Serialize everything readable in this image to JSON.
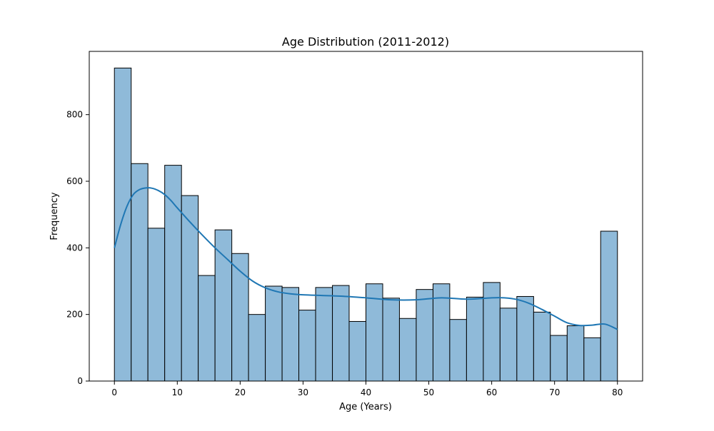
{
  "chart_data": {
    "type": "bar",
    "title": "Age Distribution (2011-2012)",
    "xlabel": "Age (Years)",
    "ylabel": "Frequency",
    "xlim": [
      -4,
      84
    ],
    "ylim": [
      0,
      990
    ],
    "xticks": [
      0,
      10,
      20,
      30,
      40,
      50,
      60,
      70,
      80
    ],
    "yticks": [
      0,
      200,
      400,
      600,
      800
    ],
    "grid": false,
    "legend": "none",
    "bar_color": "#8fbad9",
    "bar_edge_color": "#000000",
    "kde_color": "#1f77b4",
    "bins": [
      {
        "x0": 0.0,
        "x1": 2.67,
        "value": 940
      },
      {
        "x0": 2.67,
        "x1": 5.33,
        "value": 653
      },
      {
        "x0": 5.33,
        "x1": 8.0,
        "value": 459
      },
      {
        "x0": 8.0,
        "x1": 10.67,
        "value": 648
      },
      {
        "x0": 10.67,
        "x1": 13.33,
        "value": 557
      },
      {
        "x0": 13.33,
        "x1": 16.0,
        "value": 317
      },
      {
        "x0": 16.0,
        "x1": 18.67,
        "value": 454
      },
      {
        "x0": 18.67,
        "x1": 21.33,
        "value": 383
      },
      {
        "x0": 21.33,
        "x1": 24.0,
        "value": 200
      },
      {
        "x0": 24.0,
        "x1": 26.67,
        "value": 285
      },
      {
        "x0": 26.67,
        "x1": 29.33,
        "value": 281
      },
      {
        "x0": 29.33,
        "x1": 32.0,
        "value": 213
      },
      {
        "x0": 32.0,
        "x1": 34.67,
        "value": 281
      },
      {
        "x0": 34.67,
        "x1": 37.33,
        "value": 287
      },
      {
        "x0": 37.33,
        "x1": 40.0,
        "value": 179
      },
      {
        "x0": 40.0,
        "x1": 42.67,
        "value": 292
      },
      {
        "x0": 42.67,
        "x1": 45.33,
        "value": 249
      },
      {
        "x0": 45.33,
        "x1": 48.0,
        "value": 188
      },
      {
        "x0": 48.0,
        "x1": 50.67,
        "value": 275
      },
      {
        "x0": 50.67,
        "x1": 53.33,
        "value": 292
      },
      {
        "x0": 53.33,
        "x1": 56.0,
        "value": 185
      },
      {
        "x0": 56.0,
        "x1": 58.67,
        "value": 252
      },
      {
        "x0": 58.67,
        "x1": 61.33,
        "value": 296
      },
      {
        "x0": 61.33,
        "x1": 64.0,
        "value": 219
      },
      {
        "x0": 64.0,
        "x1": 66.67,
        "value": 254
      },
      {
        "x0": 66.67,
        "x1": 69.33,
        "value": 207
      },
      {
        "x0": 69.33,
        "x1": 72.0,
        "value": 137
      },
      {
        "x0": 72.0,
        "x1": 74.67,
        "value": 166
      },
      {
        "x0": 74.67,
        "x1": 77.33,
        "value": 130
      },
      {
        "x0": 77.33,
        "x1": 80.0,
        "value": 450
      }
    ],
    "kde": {
      "x": [
        0,
        1,
        2,
        3,
        4,
        5,
        6,
        7,
        8,
        9,
        10,
        12,
        14,
        16,
        18,
        20,
        22,
        24,
        26,
        28,
        30,
        33,
        36,
        40,
        44,
        48,
        52,
        56,
        60,
        62,
        64,
        66,
        68,
        70,
        72,
        74,
        76,
        78,
        80
      ],
      "y": [
        400,
        470,
        525,
        560,
        575,
        580,
        579,
        572,
        560,
        542,
        520,
        478,
        438,
        400,
        365,
        330,
        300,
        280,
        268,
        262,
        259,
        257,
        255,
        250,
        244,
        244,
        250,
        246,
        250,
        250,
        245,
        233,
        215,
        195,
        175,
        167,
        168,
        171,
        155
      ]
    }
  }
}
